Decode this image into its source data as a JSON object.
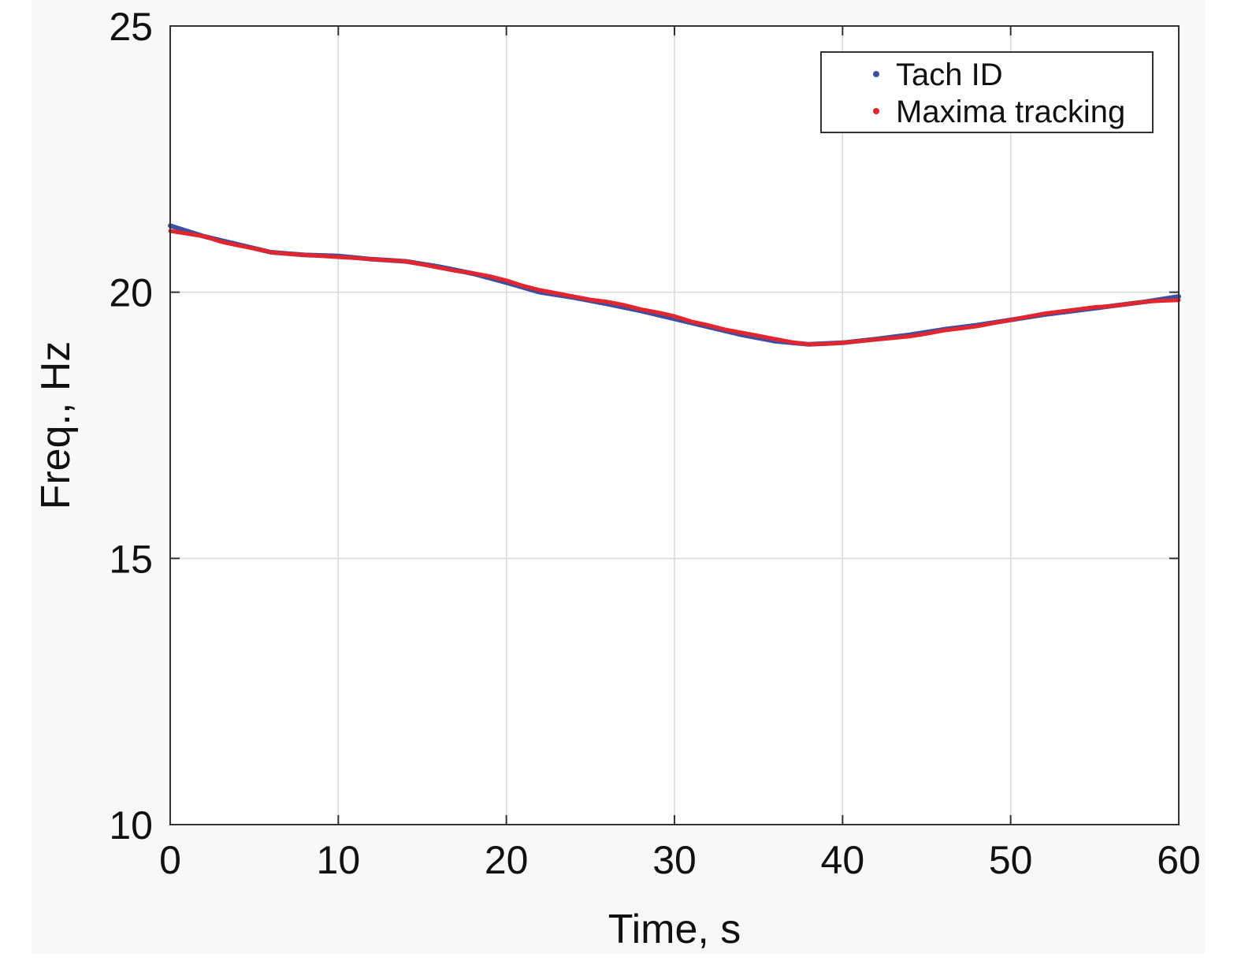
{
  "colors": {
    "background": "#f8f8f8",
    "plot_background": "#ffffff",
    "grid": "#d8d8d8",
    "axis": "#333333",
    "tach_id": "#3d4fa0",
    "maxima_tracking": "#e3252e"
  },
  "chart_data": {
    "type": "line",
    "title": "",
    "xlabel": "Time, s",
    "ylabel": "Freq., Hz",
    "xlim": [
      0,
      60
    ],
    "ylim": [
      10,
      25
    ],
    "xticks": [
      0,
      10,
      20,
      30,
      40,
      50,
      60
    ],
    "yticks": [
      10,
      15,
      20,
      25
    ],
    "xtick_labels": [
      "0",
      "10",
      "20",
      "30",
      "40",
      "50",
      "60"
    ],
    "ytick_labels": [
      "10",
      "15",
      "20",
      "25"
    ],
    "grid": true,
    "legend": {
      "placement": "top-right",
      "entries": [
        "Tach ID",
        "Maxima tracking"
      ]
    },
    "series": [
      {
        "name": "Tach ID",
        "color": "#3d4fa0",
        "x": [
          0,
          2,
          4,
          6,
          8,
          10,
          12,
          14,
          16,
          18,
          20,
          22,
          24,
          26,
          28,
          30,
          32,
          34,
          36,
          38,
          40,
          42,
          44,
          46,
          48,
          50,
          52,
          54,
          56,
          58,
          60
        ],
        "y": [
          21.25,
          21.05,
          20.9,
          20.75,
          20.7,
          20.68,
          20.62,
          20.58,
          20.48,
          20.35,
          20.18,
          20.0,
          19.9,
          19.78,
          19.65,
          19.5,
          19.35,
          19.2,
          19.08,
          19.02,
          19.05,
          19.12,
          19.2,
          19.3,
          19.38,
          19.48,
          19.58,
          19.66,
          19.74,
          19.82,
          19.92
        ]
      },
      {
        "name": "Maxima tracking",
        "color": "#e3252e",
        "x": [
          0,
          1,
          2,
          3,
          4,
          5,
          6,
          7,
          8,
          9,
          10,
          11,
          12,
          13,
          14,
          15,
          16,
          17,
          18,
          19,
          20,
          21,
          22,
          23,
          24,
          25,
          26,
          27,
          28,
          29,
          30,
          31,
          32,
          33,
          34,
          35,
          36,
          37,
          38,
          39,
          40,
          41,
          42,
          43,
          44,
          45,
          46,
          47,
          48,
          49,
          50,
          51,
          52,
          53,
          54,
          55,
          56,
          57,
          58,
          59,
          60
        ],
        "y": [
          21.15,
          21.1,
          21.05,
          20.95,
          20.88,
          20.82,
          20.75,
          20.72,
          20.7,
          20.68,
          20.66,
          20.64,
          20.62,
          20.6,
          20.58,
          20.52,
          20.46,
          20.4,
          20.36,
          20.3,
          20.22,
          20.12,
          20.04,
          19.98,
          19.92,
          19.86,
          19.82,
          19.76,
          19.68,
          19.62,
          19.55,
          19.45,
          19.38,
          19.3,
          19.24,
          19.18,
          19.12,
          19.06,
          19.02,
          19.03,
          19.05,
          19.08,
          19.11,
          19.14,
          19.17,
          19.22,
          19.28,
          19.32,
          19.36,
          19.42,
          19.48,
          19.54,
          19.6,
          19.64,
          19.68,
          19.72,
          19.74,
          19.78,
          19.82,
          19.84,
          19.85
        ]
      }
    ]
  }
}
